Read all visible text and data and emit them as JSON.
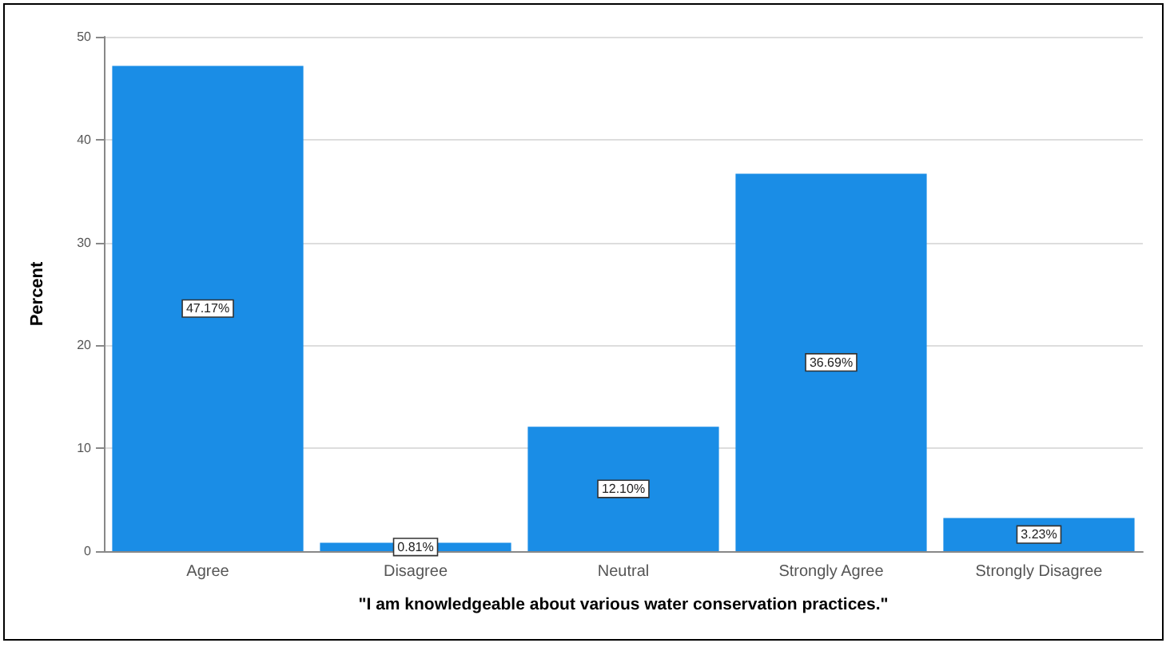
{
  "chart_data": {
    "type": "bar",
    "xlabel": "\"I am knowledgeable about various water conservation practices.\"",
    "ylabel": "Percent",
    "categories": [
      "Agree",
      "Disagree",
      "Neutral",
      "Strongly Agree",
      "Strongly Disagree"
    ],
    "values": [
      47.17,
      0.81,
      12.1,
      36.69,
      3.23
    ],
    "value_labels": [
      "47.17%",
      "0.81%",
      "12.10%",
      "36.69%",
      "3.23%"
    ],
    "color": "#1a8de6",
    "ylim": [
      0,
      50
    ],
    "yticks": [
      0,
      10,
      20,
      30,
      40,
      50
    ],
    "grid": "y"
  }
}
